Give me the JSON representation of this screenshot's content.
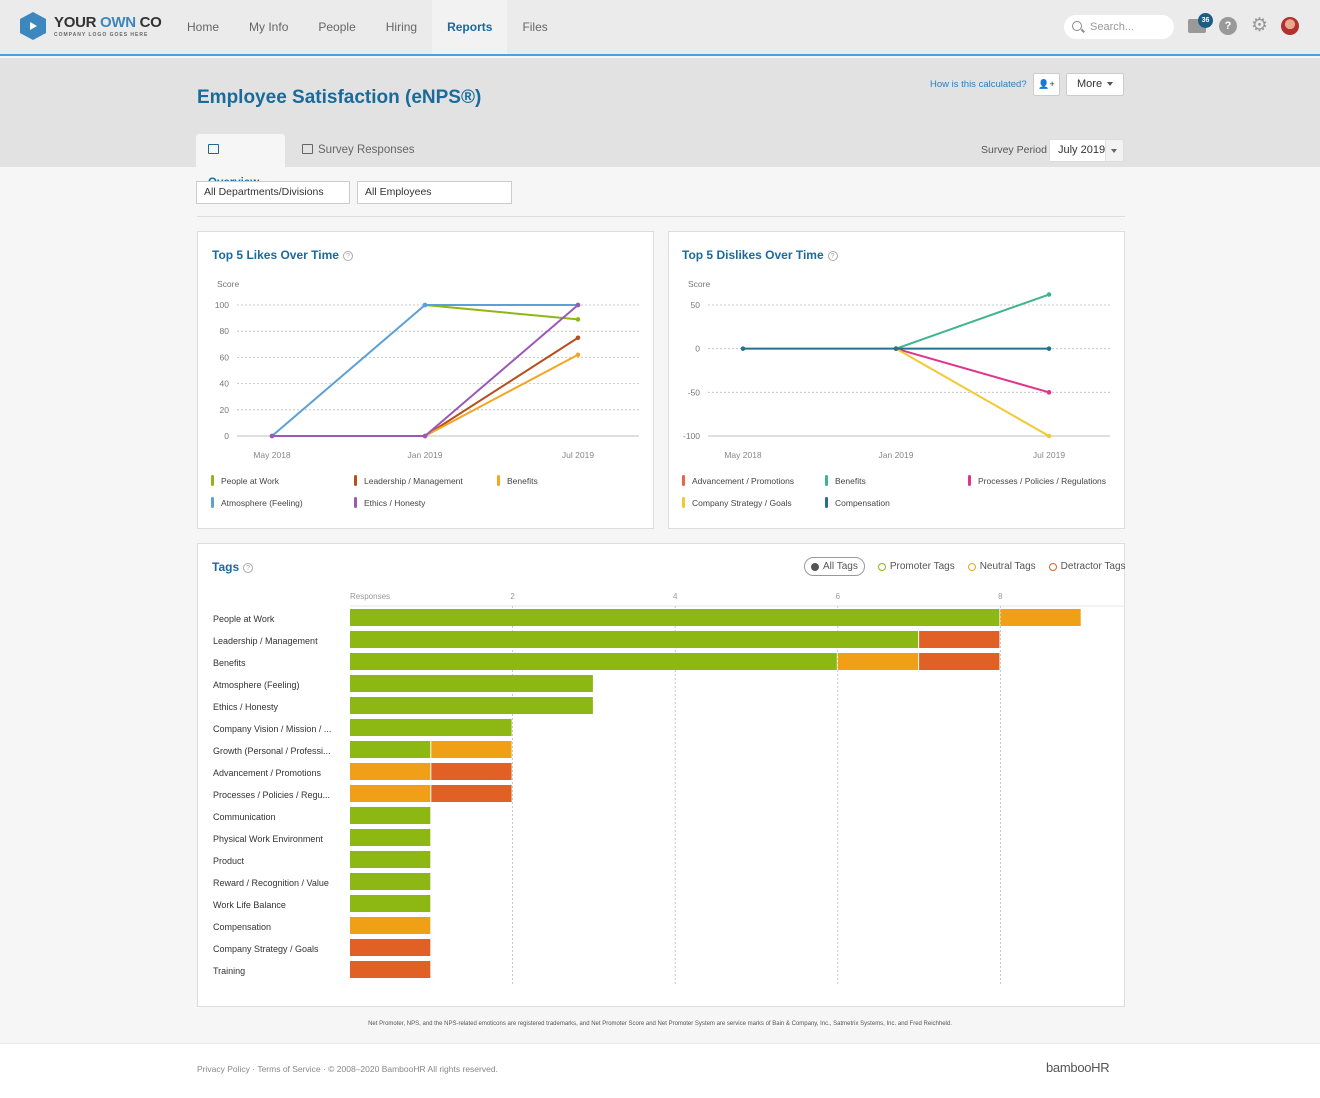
{
  "topbar": {
    "logo_main_1": "YOUR ",
    "logo_main_2": "OWN",
    "logo_main_3": " CO",
    "logo_sub": "COMPANY LOGO GOES HERE",
    "nav": [
      {
        "label": "Home",
        "active": false
      },
      {
        "label": "My Info",
        "active": false
      },
      {
        "label": "People",
        "active": false
      },
      {
        "label": "Hiring",
        "active": false
      },
      {
        "label": "Reports",
        "active": true
      },
      {
        "label": "Files",
        "active": false
      }
    ],
    "search_placeholder": "Search...",
    "inbox_count": "36",
    "help_glyph": "?",
    "gear_glyph": "⚙"
  },
  "header": {
    "title": "Employee Satisfaction (eNPS®)",
    "calc_link": "How is this calculated?",
    "person_glyph": "👤+",
    "more_label": "More",
    "tabs": [
      {
        "label": "Overview",
        "active": true
      },
      {
        "label": "Survey Responses",
        "active": false
      }
    ],
    "survey_period_label": "Survey Period",
    "survey_period_value": "July 2019"
  },
  "filters": {
    "department": "All Departments/Divisions",
    "employees": "All Employees"
  },
  "tags_panel": {
    "title": "Tags",
    "filters": [
      {
        "label": "All Tags",
        "active": true,
        "color": "#555555"
      },
      {
        "label": "Promoter Tags",
        "active": false,
        "color": "#8db712"
      },
      {
        "label": "Neutral Tags",
        "active": false,
        "color": "#f0a016"
      },
      {
        "label": "Detractor Tags",
        "active": false,
        "color": "#e06026"
      }
    ]
  },
  "chart_data": [
    {
      "type": "line",
      "title": "Top 5 Likes Over Time",
      "ylabel": "Score",
      "x": [
        "May 2018",
        "Jan 2019",
        "Jul 2019"
      ],
      "yticks": [
        0,
        20,
        40,
        60,
        80,
        100
      ],
      "ylim": [
        0,
        100
      ],
      "grid": true,
      "series": [
        {
          "name": "People at Work",
          "color": "#8db712",
          "values": [
            null,
            100,
            89
          ]
        },
        {
          "name": "Leadership / Management",
          "color": "#b5501c",
          "values": [
            null,
            0,
            75
          ]
        },
        {
          "name": "Benefits",
          "color": "#f4a523",
          "values": [
            null,
            0,
            62
          ]
        },
        {
          "name": "Atmosphere (Feeling)",
          "color": "#5ba0d6",
          "values": [
            0,
            100,
            100
          ]
        },
        {
          "name": "Ethics / Honesty",
          "color": "#9b59b6",
          "values": [
            0,
            0,
            100
          ]
        }
      ]
    },
    {
      "type": "line",
      "title": "Top 5 Dislikes Over Time",
      "ylabel": "Score",
      "x": [
        "May 2018",
        "Jan 2019",
        "Jul 2019"
      ],
      "yticks": [
        -100,
        -50,
        0,
        50
      ],
      "ylim": [
        -100,
        75
      ],
      "grid": true,
      "series": [
        {
          "name": "Advancement / Promotions",
          "color": "#f0604a",
          "values": [
            null,
            null,
            null
          ]
        },
        {
          "name": "Benefits",
          "color": "#3fb48e",
          "values": [
            null,
            0,
            62
          ]
        },
        {
          "name": "Processes / Policies / Regulations",
          "color": "#e0338a",
          "values": [
            null,
            0,
            -50
          ]
        },
        {
          "name": "Company Strategy / Goals",
          "color": "#f2c932",
          "values": [
            null,
            0,
            -100
          ]
        },
        {
          "name": "Compensation",
          "color": "#23708f",
          "values": [
            0,
            0,
            0
          ]
        }
      ]
    },
    {
      "type": "bar",
      "title": "Tags",
      "orientation": "horizontal",
      "stacked": true,
      "xlabel": "Responses",
      "xticks": [
        2,
        4,
        6,
        8
      ],
      "xlim": [
        0,
        9.6
      ],
      "categories": [
        "People at Work",
        "Leadership / Management",
        "Benefits",
        "Atmosphere (Feeling)",
        "Ethics / Honesty",
        "Company Vision / Mission / ...",
        "Growth (Personal / Professi...",
        "Advancement / Promotions",
        "Processes / Policies / Regu...",
        "Communication",
        "Physical Work Environment",
        "Product",
        "Reward / Recognition / Value",
        "Work Life Balance",
        "Compensation",
        "Company Strategy / Goals",
        "Training"
      ],
      "series": [
        {
          "name": "Promoter",
          "color": "#8db712",
          "values": [
            8,
            7,
            6,
            3,
            3,
            2,
            1,
            0,
            0,
            1,
            1,
            1,
            1,
            1,
            0,
            0,
            0
          ]
        },
        {
          "name": "Neutral",
          "color": "#f0a016",
          "values": [
            1,
            0,
            1,
            0,
            0,
            0,
            1,
            1,
            1,
            0,
            0,
            0,
            0,
            0,
            1,
            0,
            0
          ]
        },
        {
          "name": "Detractor",
          "color": "#e06026",
          "values": [
            0,
            1,
            1,
            0,
            0,
            0,
            0,
            1,
            1,
            0,
            0,
            0,
            0,
            0,
            0,
            1,
            1
          ]
        }
      ]
    }
  ],
  "footer": {
    "disclaimer": "Net Promoter, NPS, and the NPS-related emoticons are registered trademarks, and Net Promoter Score and Net Promoter System are service marks of Bain & Company, Inc., Satmetrix Systems, Inc. and Fred Reichheld.",
    "privacy": "Privacy Policy",
    "sep": " · ",
    "terms": "Terms of Service",
    "copyright": "© 2008–2020 BambooHR All rights reserved.",
    "brand": "bambooHR"
  }
}
